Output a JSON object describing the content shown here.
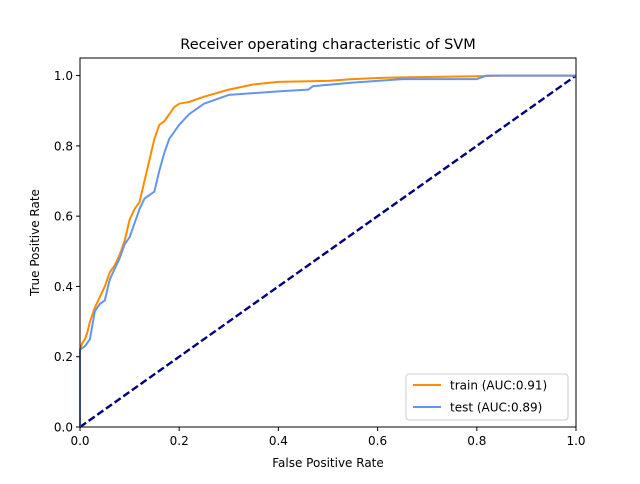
{
  "chart_data": {
    "type": "line",
    "title": "Receiver operating characteristic of SVM",
    "xlabel": "False Positive Rate",
    "ylabel": "True Positive Rate",
    "xlim": [
      0.0,
      1.0
    ],
    "ylim": [
      0.0,
      1.05
    ],
    "x_ticks": [
      "0.0",
      "0.2",
      "0.4",
      "0.6",
      "0.8",
      "1.0"
    ],
    "y_ticks": [
      "0.0",
      "0.2",
      "0.4",
      "0.6",
      "0.8",
      "1.0"
    ],
    "grid": false,
    "legend_position": "lower-right",
    "series": [
      {
        "name": "train (AUC:0.91)",
        "color": "#ff8c00",
        "style": "solid",
        "points": [
          [
            0,
            0
          ],
          [
            0,
            0.22
          ],
          [
            0.005,
            0.24
          ],
          [
            0.01,
            0.25
          ],
          [
            0.015,
            0.27
          ],
          [
            0.02,
            0.3
          ],
          [
            0.025,
            0.32
          ],
          [
            0.03,
            0.34
          ],
          [
            0.04,
            0.37
          ],
          [
            0.05,
            0.4
          ],
          [
            0.06,
            0.44
          ],
          [
            0.07,
            0.46
          ],
          [
            0.08,
            0.49
          ],
          [
            0.09,
            0.53
          ],
          [
            0.1,
            0.59
          ],
          [
            0.11,
            0.62
          ],
          [
            0.12,
            0.64
          ],
          [
            0.13,
            0.7
          ],
          [
            0.14,
            0.76
          ],
          [
            0.15,
            0.82
          ],
          [
            0.16,
            0.86
          ],
          [
            0.17,
            0.87
          ],
          [
            0.18,
            0.89
          ],
          [
            0.19,
            0.91
          ],
          [
            0.2,
            0.92
          ],
          [
            0.22,
            0.925
          ],
          [
            0.25,
            0.94
          ],
          [
            0.3,
            0.96
          ],
          [
            0.35,
            0.975
          ],
          [
            0.4,
            0.982
          ],
          [
            0.5,
            0.985
          ],
          [
            0.55,
            0.99
          ],
          [
            0.6,
            0.993
          ],
          [
            0.65,
            0.995
          ],
          [
            0.8,
            0.998
          ],
          [
            0.85,
            1.0
          ],
          [
            1.0,
            1.0
          ]
        ]
      },
      {
        "name": "test (AUC:0.89)",
        "color": "#6495ed",
        "style": "solid",
        "points": [
          [
            0,
            0
          ],
          [
            0,
            0.22
          ],
          [
            0.01,
            0.23
          ],
          [
            0.02,
            0.25
          ],
          [
            0.025,
            0.29
          ],
          [
            0.03,
            0.33
          ],
          [
            0.04,
            0.35
          ],
          [
            0.05,
            0.36
          ],
          [
            0.06,
            0.42
          ],
          [
            0.07,
            0.45
          ],
          [
            0.08,
            0.48
          ],
          [
            0.09,
            0.52
          ],
          [
            0.1,
            0.54
          ],
          [
            0.11,
            0.58
          ],
          [
            0.12,
            0.62
          ],
          [
            0.13,
            0.65
          ],
          [
            0.14,
            0.66
          ],
          [
            0.15,
            0.67
          ],
          [
            0.16,
            0.73
          ],
          [
            0.17,
            0.78
          ],
          [
            0.18,
            0.82
          ],
          [
            0.19,
            0.84
          ],
          [
            0.2,
            0.86
          ],
          [
            0.22,
            0.89
          ],
          [
            0.25,
            0.92
          ],
          [
            0.3,
            0.945
          ],
          [
            0.35,
            0.95
          ],
          [
            0.4,
            0.955
          ],
          [
            0.46,
            0.96
          ],
          [
            0.47,
            0.97
          ],
          [
            0.55,
            0.98
          ],
          [
            0.6,
            0.985
          ],
          [
            0.65,
            0.99
          ],
          [
            0.8,
            0.99
          ],
          [
            0.82,
            1.0
          ],
          [
            1.0,
            1.0
          ]
        ]
      },
      {
        "name": "",
        "color": "#000080",
        "style": "dashed",
        "points": [
          [
            0,
            0
          ],
          [
            1,
            1
          ]
        ]
      }
    ]
  }
}
